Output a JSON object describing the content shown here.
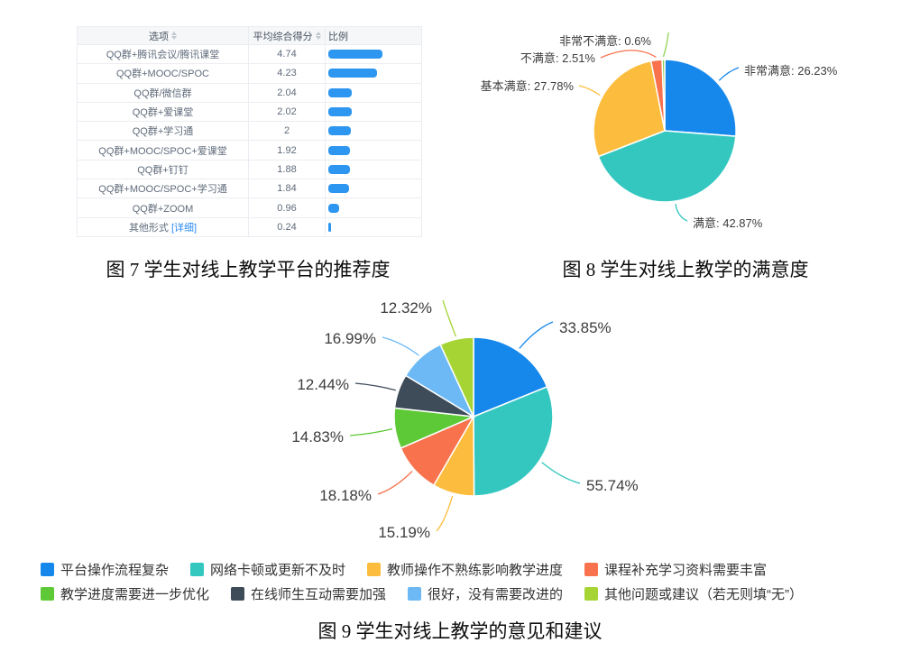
{
  "figure7": {
    "caption": "图 7  学生对线上教学平台的推荐度"
  },
  "figure8": {
    "caption": "图 8  学生对线上教学的满意度"
  },
  "figure9": {
    "caption": "图 9 学生对线上教学的意见和建议"
  },
  "chart_data": [
    {
      "type": "table",
      "title": "学生对线上教学平台的推荐度",
      "columns": [
        "选项",
        "平均综合得分",
        "比例"
      ],
      "sortable_columns": [
        "选项",
        "平均综合得分"
      ],
      "rows": [
        {
          "option": "QQ群+腾讯会议/腾讯课堂",
          "score": "4.74"
        },
        {
          "option": "QQ群+MOOC/SPOC",
          "score": "4.23"
        },
        {
          "option": "QQ群/微信群",
          "score": "2.04"
        },
        {
          "option": "QQ群+爱课堂",
          "score": "2.02"
        },
        {
          "option": "QQ群+学习通",
          "score": "2"
        },
        {
          "option": "QQ群+MOOC/SPOC+爱课堂",
          "score": "1.92"
        },
        {
          "option": "QQ群+钉钉",
          "score": "1.88"
        },
        {
          "option": "QQ群+MOOC/SPOC+学习通",
          "score": "1.84"
        },
        {
          "option": "QQ群+ZOOM",
          "score": "0.96"
        },
        {
          "option": "其他形式",
          "link": "[详细]",
          "score": "0.24"
        }
      ],
      "bar_max": 4.74,
      "bar_color": "#2d96f0",
      "link_color": "#2d8cf0"
    },
    {
      "type": "pie",
      "title": "学生对线上教学的满意度",
      "labels": [
        "非常满意",
        "满意",
        "基本满意",
        "不满意",
        "非常不满意"
      ],
      "values": [
        26.23,
        42.87,
        27.78,
        2.51,
        0.6
      ],
      "unit": "%",
      "label_format": "name_value",
      "colors": [
        "#1688ec",
        "#33c7c0",
        "#fcbd3e",
        "#f7724d",
        "#8ed155"
      ],
      "legend_position": "none"
    },
    {
      "type": "pie",
      "title": "学生对线上教学的意见和建议",
      "labels": [
        "平台操作流程复杂",
        "网络卡顿或更新不及时",
        "教师操作不熟练影响教学进度",
        "课程补充学习资料需要丰富",
        "教学进度需要进一步优化",
        "在线师生互动需要加强",
        "很好，没有需要改进的",
        "其他问题或建议（若无则填“无”）"
      ],
      "values": [
        33.85,
        55.74,
        15.19,
        18.18,
        14.83,
        12.44,
        16.99,
        12.32
      ],
      "unit": "%",
      "label_format": "value",
      "note": "multi-select question; slice angles proportional to value/sum of values",
      "colors": [
        "#1688ec",
        "#33c7c0",
        "#fcbd3e",
        "#f7724d",
        "#5ec936",
        "#3e4b59",
        "#6cb9f5",
        "#a6d435"
      ],
      "legend_position": "bottom"
    }
  ]
}
